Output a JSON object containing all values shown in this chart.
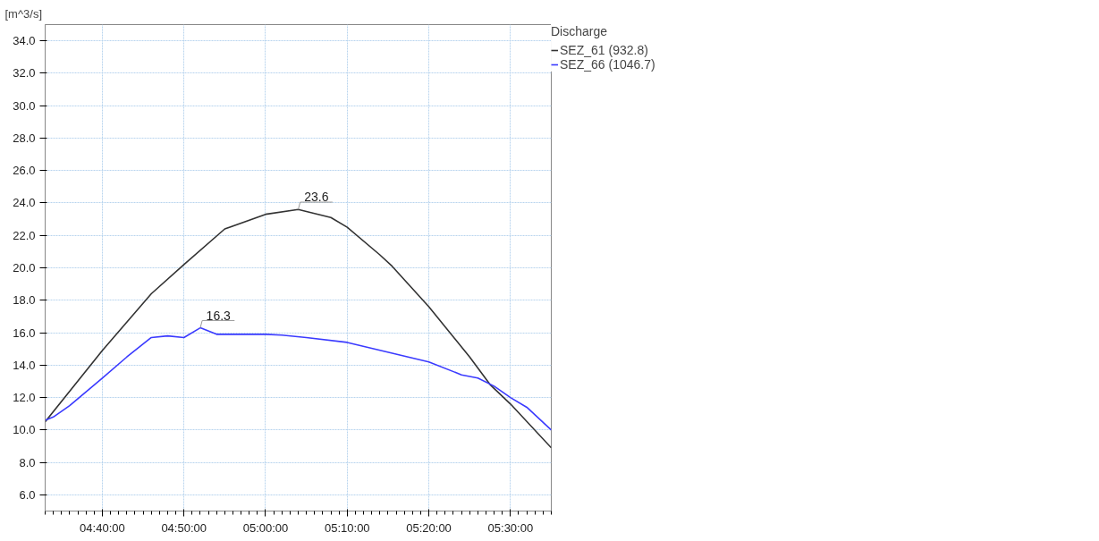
{
  "chart_data": {
    "type": "line",
    "ylabel": "[m^3/s]",
    "legend_title": "Discharge",
    "xlim": [
      4.55,
      5.5833
    ],
    "ylim": [
      5,
      35
    ],
    "xticks": [
      {
        "value": 4.6667,
        "label": "04:40:00"
      },
      {
        "value": 4.8333,
        "label": "04:50:00"
      },
      {
        "value": 5.0,
        "label": "05:00:00"
      },
      {
        "value": 5.1667,
        "label": "05:10:00"
      },
      {
        "value": 5.3333,
        "label": "05:20:00"
      },
      {
        "value": 5.5,
        "label": "05:30:00"
      }
    ],
    "yticks": [
      {
        "value": 6,
        "label": "6.0"
      },
      {
        "value": 8,
        "label": "8.0"
      },
      {
        "value": 10,
        "label": "10.0"
      },
      {
        "value": 12,
        "label": "12.0"
      },
      {
        "value": 14,
        "label": "14.0"
      },
      {
        "value": 16,
        "label": "16.0"
      },
      {
        "value": 18,
        "label": "18.0"
      },
      {
        "value": 20,
        "label": "20.0"
      },
      {
        "value": 22,
        "label": "22.0"
      },
      {
        "value": 24,
        "label": "24.0"
      },
      {
        "value": 26,
        "label": "26.0"
      },
      {
        "value": 28,
        "label": "28.0"
      },
      {
        "value": 30,
        "label": "30.0"
      },
      {
        "value": 32,
        "label": "32.0"
      },
      {
        "value": 34,
        "label": "34.0"
      }
    ],
    "series": [
      {
        "name": "SEZ_61 (932.8)",
        "color": "#333333",
        "x": [
          4.55,
          4.6667,
          4.7667,
          4.8333,
          4.9167,
          5.0,
          5.0667,
          5.1333,
          5.1667,
          5.2333,
          5.2583,
          5.3333,
          5.4167,
          5.4583,
          5.5,
          5.5833
        ],
        "values": [
          10.5,
          14.9,
          18.4,
          20.2,
          22.4,
          23.3,
          23.6,
          23.1,
          22.5,
          20.8,
          20.1,
          17.6,
          14.5,
          12.8,
          11.6,
          8.9
        ]
      },
      {
        "name": "SEZ_66 (1046.7)",
        "color": "#3a3aff",
        "x": [
          4.55,
          4.5667,
          4.6,
          4.6667,
          4.7167,
          4.7667,
          4.8,
          4.8333,
          4.8667,
          4.9,
          5.0,
          5.0333,
          5.0833,
          5.1667,
          5.3333,
          5.4,
          5.4333,
          5.4667,
          5.5,
          5.5333,
          5.5833
        ],
        "values": [
          10.6,
          10.8,
          11.5,
          13.2,
          14.5,
          15.7,
          15.8,
          15.7,
          16.3,
          15.9,
          15.9,
          15.85,
          15.7,
          15.4,
          14.2,
          13.4,
          13.2,
          12.7,
          12.0,
          11.4,
          10.0
        ]
      }
    ],
    "annotations": [
      {
        "text": "23.6",
        "x": 5.0667,
        "y": 23.6
      },
      {
        "text": "16.3",
        "x": 4.8667,
        "y": 16.3
      }
    ],
    "grid": true,
    "legend": "right",
    "marker": "none",
    "line_style": "solid"
  }
}
